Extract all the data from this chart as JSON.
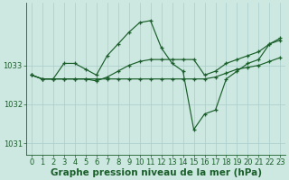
{
  "xlabel": "Graphe pression niveau de la mer (hPa)",
  "background_color": "#cce8e0",
  "grid_color": "#aacccc",
  "line_color": "#1a5e2a",
  "marker": "+",
  "xlim": [
    -0.5,
    23.5
  ],
  "ylim": [
    1030.7,
    1034.6
  ],
  "yticks": [
    1031,
    1032,
    1033
  ],
  "xticks": [
    0,
    1,
    2,
    3,
    4,
    5,
    6,
    7,
    8,
    9,
    10,
    11,
    12,
    13,
    14,
    15,
    16,
    17,
    18,
    19,
    20,
    21,
    22,
    23
  ],
  "series": [
    {
      "x": [
        0,
        1,
        2,
        3,
        4,
        5,
        6,
        7,
        8,
        9,
        10,
        11,
        12,
        13,
        14,
        15,
        16,
        17,
        18,
        19,
        20,
        21,
        22,
        23
      ],
      "y": [
        1032.75,
        1032.65,
        1032.65,
        1033.05,
        1033.05,
        1032.9,
        1032.75,
        1033.25,
        1033.55,
        1033.85,
        1034.1,
        1034.15,
        1033.45,
        1033.05,
        1032.85,
        1031.35,
        1031.75,
        1031.85,
        1032.65,
        1032.85,
        1033.05,
        1033.15,
        1033.55,
        1033.65
      ]
    },
    {
      "x": [
        0,
        1,
        2,
        3,
        4,
        5,
        6,
        7,
        8,
        9,
        10,
        11,
        12,
        13,
        14,
        15,
        16,
        17,
        18,
        19,
        20,
        21,
        22,
        23
      ],
      "y": [
        1032.75,
        1032.65,
        1032.65,
        1032.65,
        1032.65,
        1032.65,
        1032.65,
        1032.65,
        1032.65,
        1032.65,
        1032.65,
        1032.65,
        1032.65,
        1032.65,
        1032.65,
        1032.65,
        1032.65,
        1032.7,
        1032.8,
        1032.9,
        1032.95,
        1033.0,
        1033.1,
        1033.2
      ]
    },
    {
      "x": [
        0,
        1,
        2,
        3,
        4,
        5,
        6,
        7,
        8,
        9,
        10,
        11,
        12,
        13,
        14,
        15,
        16,
        17,
        18,
        19,
        20,
        21,
        22,
        23
      ],
      "y": [
        1032.75,
        1032.65,
        1032.65,
        1032.65,
        1032.65,
        1032.65,
        1032.6,
        1032.7,
        1032.85,
        1033.0,
        1033.1,
        1033.15,
        1033.15,
        1033.15,
        1033.15,
        1033.15,
        1032.75,
        1032.85,
        1033.05,
        1033.15,
        1033.25,
        1033.35,
        1033.55,
        1033.7
      ]
    }
  ],
  "tick_fontsize": 6.0,
  "xlabel_fontsize": 7.5
}
